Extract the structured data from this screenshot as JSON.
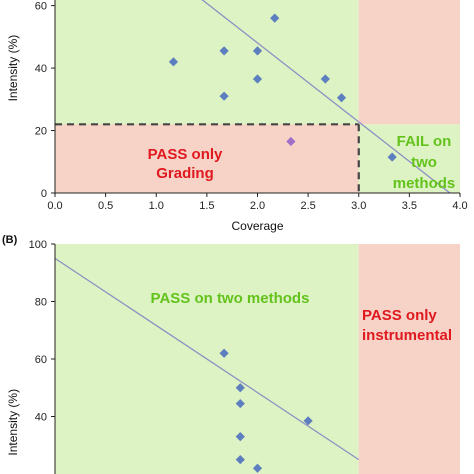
{
  "colors": {
    "pass_zone": "#ddf3c3",
    "fail_zone": "#f6d3c6",
    "point": "#5d7fbf",
    "highlight_point": "#a070c8",
    "regression_line": "#8f8fc4",
    "label_red": "#e0181f",
    "label_green": "#63c31c",
    "dashed": "#444444"
  },
  "chart_data": [
    {
      "type": "scatter",
      "panel": "",
      "xlabel": "Coverage",
      "ylabel": "Intensity (%)",
      "xlim": [
        0,
        4
      ],
      "ylim": [
        0,
        65
      ],
      "x_ticks": [
        "0.0",
        "0.5",
        "1.0",
        "1.5",
        "2.0",
        "2.5",
        "3.0",
        "3.5",
        "4.0"
      ],
      "y_ticks": [
        "0",
        "20",
        "40",
        "60"
      ],
      "threshold_x": 3.0,
      "threshold_y": 22,
      "points": [
        {
          "x": 1.17,
          "y": 42
        },
        {
          "x": 1.67,
          "y": 45.5
        },
        {
          "x": 1.67,
          "y": 31
        },
        {
          "x": 2.0,
          "y": 45.5
        },
        {
          "x": 2.0,
          "y": 36.5
        },
        {
          "x": 2.17,
          "y": 56
        },
        {
          "x": 2.67,
          "y": 36.5
        },
        {
          "x": 2.83,
          "y": 30.5
        },
        {
          "x": 3.33,
          "y": 11.5
        }
      ],
      "highlight_points": [
        {
          "x": 2.33,
          "y": 16.5
        }
      ],
      "regression_line": [
        {
          "x": 1.33,
          "y": 65
        },
        {
          "x": 3.9,
          "y": 0
        }
      ],
      "labels": {
        "pass_only_grading": [
          "PASS only",
          "Grading"
        ],
        "fail_two_methods": [
          "FAIL on",
          "two",
          "methods"
        ]
      }
    },
    {
      "type": "scatter",
      "panel": "(B)",
      "xlabel": "",
      "ylabel": "Intensity (%)",
      "xlim": [
        0,
        4
      ],
      "ylim": [
        20,
        100
      ],
      "y_ticks": [
        "40",
        "60",
        "80",
        "100"
      ],
      "threshold_x": 3.0,
      "points": [
        {
          "x": 1.67,
          "y": 62
        },
        {
          "x": 1.83,
          "y": 50
        },
        {
          "x": 1.83,
          "y": 44.5
        },
        {
          "x": 1.83,
          "y": 33
        },
        {
          "x": 2.5,
          "y": 38.5
        },
        {
          "x": 1.83,
          "y": 25
        },
        {
          "x": 2.0,
          "y": 22
        }
      ],
      "regression_line": [
        {
          "x": 0,
          "y": 95
        },
        {
          "x": 3.0,
          "y": 25
        }
      ],
      "labels": {
        "pass_two_methods": "PASS on two methods",
        "pass_only_instrumental": [
          "PASS only",
          "instrumental"
        ]
      }
    }
  ]
}
